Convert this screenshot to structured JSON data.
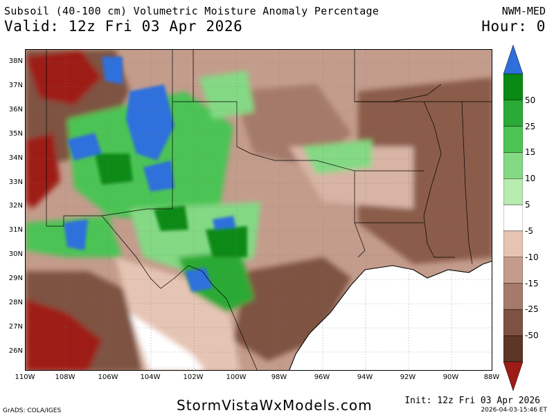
{
  "header": {
    "title": "Subsoil (40-100 cm) Volumetric Moisture Anomaly Percentage",
    "valid": "Valid: 12z Fri 03 Apr 2026",
    "model": "NWM-MED",
    "hour": "Hour: 0"
  },
  "map": {
    "lat_labels": [
      "38N",
      "37N",
      "36N",
      "35N",
      "34N",
      "33N",
      "32N",
      "31N",
      "30N",
      "29N",
      "28N",
      "27N",
      "26N"
    ],
    "lon_labels": [
      "110W",
      "108W",
      "106W",
      "104W",
      "102W",
      "100W",
      "98W",
      "96W",
      "94W",
      "92W",
      "90W",
      "88W"
    ],
    "ocean_color": "#ffffff",
    "grid_lines": "dotted"
  },
  "colorbar": {
    "labels": [
      "50",
      "25",
      "15",
      "10",
      "5",
      "-5",
      "-10",
      "-15",
      "-25",
      "-50"
    ],
    "colors": [
      "#2f6fdc",
      "#0a8a14",
      "#2aaa36",
      "#4cc454",
      "#84d984",
      "#b8ecb0",
      "#ffffff",
      "#e6c4b4",
      "#c49c8c",
      "#a57a6a",
      "#7e5242",
      "#5c3626",
      "#9e1c16"
    ]
  },
  "footer": {
    "software": "GrADS: COLA/IGES",
    "website": "StormVistaWxModels.com",
    "init": "Init: 12z Fri 03 Apr 2026",
    "timestamp": "2026-04-03-15:46 ET"
  }
}
